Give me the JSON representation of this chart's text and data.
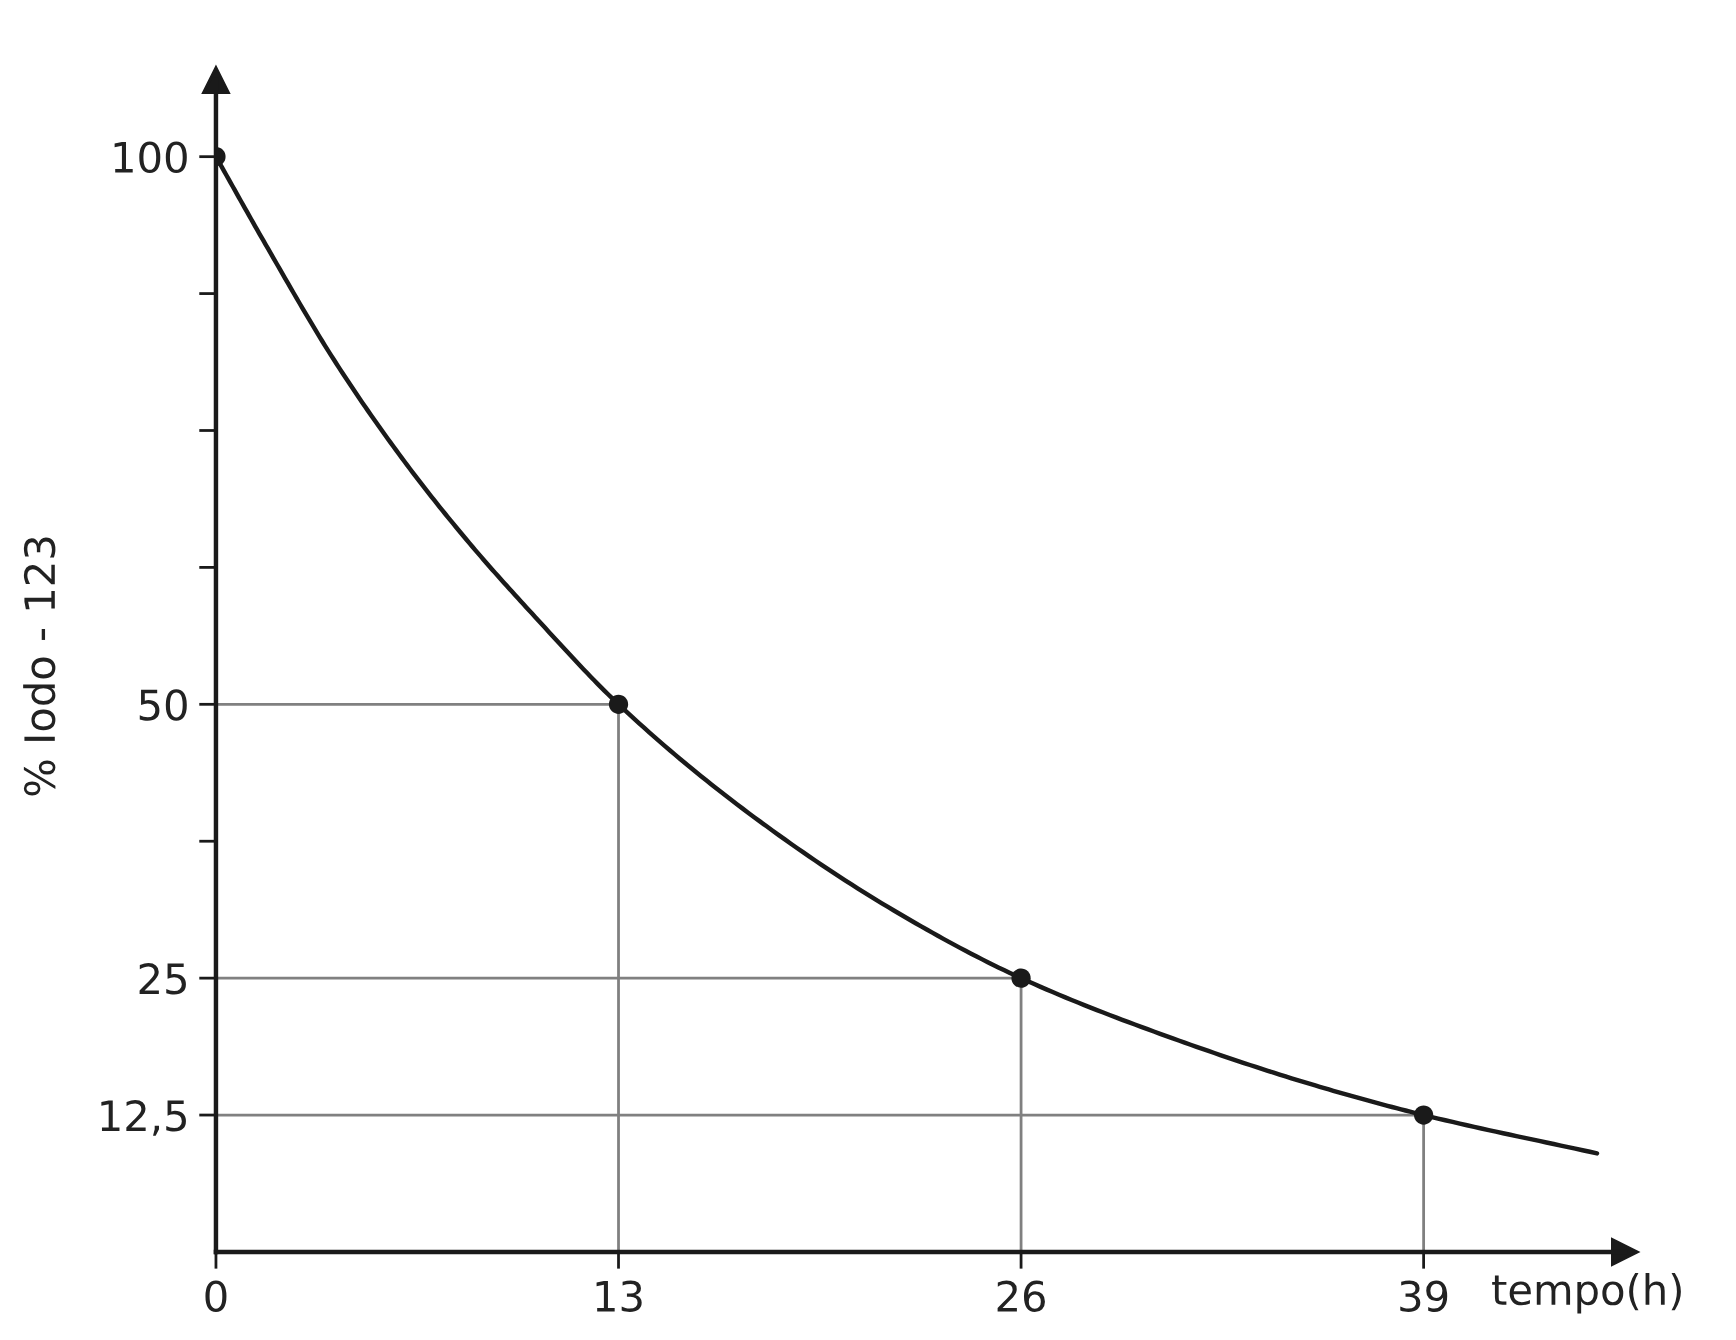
{
  "chart_data": {
    "type": "line",
    "xlabel": "tempo(h)",
    "ylabel": "% Iodo - 123",
    "xlim": [
      0,
      45.5
    ],
    "ylim": [
      0,
      107
    ],
    "xticks": [
      0,
      13,
      26,
      39
    ],
    "yticks": [
      {
        "value": 12.5,
        "label": "12,5"
      },
      25,
      {
        "value": 37.5,
        "label": null
      },
      50,
      {
        "value": 62.5,
        "label": null
      },
      {
        "value": 75,
        "label": null
      },
      {
        "value": 87.5,
        "label": null
      },
      100
    ],
    "series": [
      {
        "color": "#1a1a1a",
        "x": [
          0,
          1.6,
          3.8,
          6,
          8.1,
          10.3,
          13,
          17,
          21.7,
          26,
          30.9,
          35.5,
          39,
          44.6
        ],
        "values": [
          100,
          92,
          81.5,
          72.5,
          65,
          58,
          50,
          40.5,
          31.5,
          25,
          19.5,
          15.2,
          12.5,
          9
        ]
      },
      {
        "type": "scatter",
        "marker": "circle",
        "color": "#1a1a1a",
        "x": [
          0,
          13,
          26,
          39
        ],
        "values": [
          100,
          50,
          25,
          12.5
        ]
      },
      {
        "type": "line",
        "color": "#808080",
        "x": [
          0,
          13,
          13
        ],
        "values": [
          50,
          50,
          0
        ]
      },
      {
        "type": "line",
        "color": "#808080",
        "x": [
          0,
          26,
          26
        ],
        "values": [
          25,
          25,
          0
        ]
      },
      {
        "type": "line",
        "color": "#808080",
        "x": [
          0,
          39,
          39
        ],
        "values": [
          12.5,
          12.5,
          0
        ]
      }
    ]
  }
}
